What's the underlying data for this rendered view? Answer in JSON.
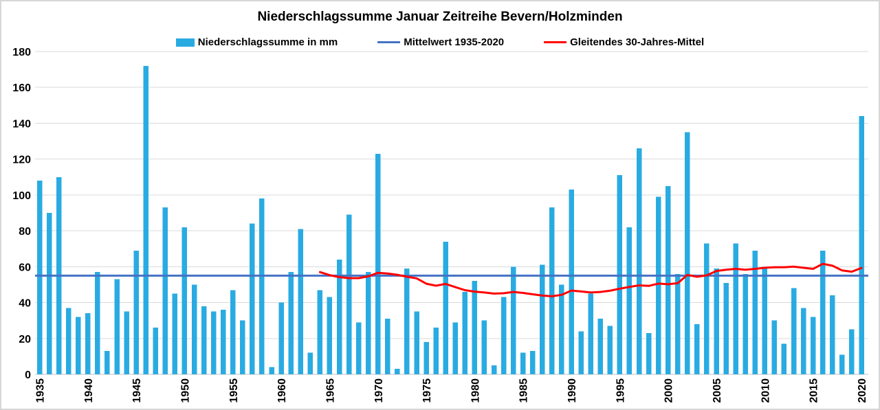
{
  "chart_data": {
    "type": "bar",
    "title": "Niederschlagssumme Januar Zeitreihe Bevern/Holzminden",
    "legend_position": "top",
    "grid": true,
    "xlabel": "",
    "ylabel": "",
    "categories": [
      1935,
      1936,
      1937,
      1938,
      1939,
      1940,
      1941,
      1942,
      1943,
      1944,
      1945,
      1946,
      1947,
      1948,
      1949,
      1950,
      1951,
      1952,
      1953,
      1954,
      1955,
      1956,
      1957,
      1958,
      1959,
      1960,
      1961,
      1962,
      1963,
      1964,
      1965,
      1966,
      1967,
      1968,
      1969,
      1970,
      1971,
      1972,
      1973,
      1974,
      1975,
      1976,
      1977,
      1978,
      1979,
      1980,
      1981,
      1982,
      1983,
      1984,
      1985,
      1986,
      1987,
      1988,
      1989,
      1990,
      1991,
      1992,
      1993,
      1994,
      1995,
      1996,
      1997,
      1998,
      1999,
      2000,
      2001,
      2002,
      2003,
      2004,
      2005,
      2006,
      2007,
      2008,
      2009,
      2010,
      2011,
      2012,
      2013,
      2014,
      2015,
      2016,
      2017,
      2018,
      2019,
      2020
    ],
    "series": [
      {
        "name": "Niederschlagssumme in mm",
        "type": "bar",
        "color": "#29ABE2",
        "values": [
          108,
          90,
          110,
          37,
          32,
          34,
          57,
          13,
          53,
          35,
          69,
          172,
          26,
          93,
          45,
          82,
          50,
          38,
          35,
          36,
          47,
          30,
          84,
          98,
          4,
          40,
          57,
          81,
          12,
          47,
          43,
          64,
          89,
          29,
          57,
          123,
          31,
          3,
          59,
          35,
          18,
          26,
          74,
          29,
          46,
          52,
          30,
          5,
          43,
          60,
          12,
          13,
          61,
          93,
          50,
          103,
          24,
          45,
          31,
          27,
          111,
          82,
          126,
          23,
          99,
          105,
          56,
          135,
          28,
          73,
          59,
          51,
          73,
          56,
          69,
          60,
          30,
          17,
          48,
          37,
          32,
          69,
          44,
          11,
          25,
          144
        ]
      },
      {
        "name": "Mittelwert 1935-2020",
        "type": "hline",
        "color": "#4472C4",
        "value": 55
      },
      {
        "name": "Gleitendes 30-Jahres-Mittel",
        "type": "line",
        "color": "#FF0000",
        "start_year": 1964,
        "values": [
          57.0,
          55.3,
          54.2,
          53.6,
          53.6,
          54.6,
          56.6,
          56.2,
          55.5,
          54.4,
          53.5,
          50.5,
          49.4,
          50.4,
          48.6,
          46.9,
          46.1,
          45.6,
          45.0,
          45.2,
          45.9,
          45.4,
          44.6,
          43.9,
          43.5,
          44.3,
          46.7,
          46.2,
          45.6,
          45.9,
          46.6,
          47.7,
          48.7,
          49.6,
          49.3,
          50.6,
          50.2,
          50.8,
          55.4,
          54.4,
          55.2,
          57.6,
          58.3,
          58.8,
          58.3,
          58.8,
          59.4,
          59.7,
          59.7,
          60.0,
          59.4,
          58.8,
          61.6,
          60.6,
          57.9,
          57.2,
          59.3
        ]
      }
    ],
    "axes": {
      "ylim": [
        0,
        180
      ],
      "ytick_step": 20,
      "yticks": [
        0,
        20,
        40,
        60,
        80,
        100,
        120,
        140,
        160,
        180
      ],
      "xticks": [
        1935,
        1940,
        1945,
        1950,
        1955,
        1960,
        1965,
        1970,
        1975,
        1980,
        1985,
        1990,
        1995,
        2000,
        2005,
        2010,
        2015,
        2020
      ],
      "x_label_rotation": -90
    },
    "colors": {
      "gridline": "#D9D9D9",
      "axis": "#BFBFBF",
      "text": "#000000",
      "background": "#FFFFFF",
      "border": "#D6D6D6"
    }
  }
}
